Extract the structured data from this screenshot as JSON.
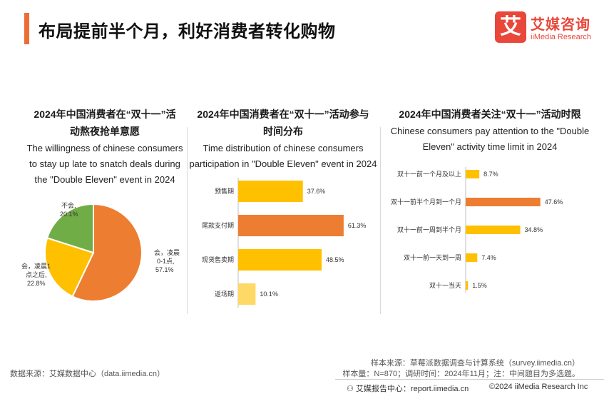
{
  "header": {
    "title": "布局提前半个月，利好消费者转化购物",
    "brand_mark": "艾",
    "brand_cn": "艾媒咨询",
    "brand_en": "iiMedia Research"
  },
  "colors": {
    "accent": "#ed6d35",
    "orange": "#ed7d31",
    "yellow": "#ffc000",
    "light_yellow": "#ffd966",
    "green": "#70ad47"
  },
  "chart_data": [
    {
      "type": "pie",
      "title_line1": "2024年中国消费者在“双十一”活",
      "title_line2": "动熬夜抢单意愿",
      "subtitle_line1": "The willingness of chinese consumers",
      "subtitle_line2": "to stay up late to snatch deals during",
      "subtitle_line3": "the \"Double Eleven\" event in 2024",
      "slices": [
        {
          "label_line1": "会，凌晨",
          "label_line2": "0-1点,",
          "value": 57.1,
          "value_label": "57.1%",
          "color": "#ed7d31"
        },
        {
          "label_line1": "会，凌晨1",
          "label_line2": "点之后,",
          "value": 22.8,
          "value_label": "22.8%",
          "color": "#ffc000"
        },
        {
          "label_line1": "不会,",
          "label_line2": "",
          "value": 20.1,
          "value_label": "20.1%",
          "color": "#70ad47"
        }
      ]
    },
    {
      "type": "bar",
      "orientation": "horizontal",
      "title_line1": "2024年中国消费者在“双十一”活动参与",
      "title_line2": "时间分布",
      "subtitle_line1": "Time distribution of chinese consumers",
      "subtitle_line2": "participation in \"Double Eleven\" event in 2024",
      "categories": [
        "预售期",
        "尾款支付期",
        "现货售卖期",
        "返场期"
      ],
      "values": [
        37.6,
        61.3,
        48.5,
        10.1
      ],
      "value_labels": [
        "37.6%",
        "61.3%",
        "48.5%",
        "10.1%"
      ],
      "colors": [
        "#ffc000",
        "#ed7d31",
        "#ffc000",
        "#ffd966"
      ],
      "xlim": [
        0,
        80
      ]
    },
    {
      "type": "bar",
      "orientation": "horizontal",
      "title_line1": "2024年中国消费者关注“双十一”活动时限",
      "subtitle_line1": "Chinese consumers pay attention to the \"Double",
      "subtitle_line2": "Eleven\" activity time limit in 2024",
      "categories": [
        "双十一前一个月及以上",
        "双十一前半个月到一个月",
        "双十一前一周到半个月",
        "双十一前一天到一周",
        "双十一当天"
      ],
      "values": [
        8.7,
        47.6,
        34.8,
        7.4,
        1.5
      ],
      "value_labels": [
        "8.7%",
        "47.6%",
        "34.8%",
        "7.4%",
        "1.5%"
      ],
      "colors": [
        "#ffc000",
        "#ed7d31",
        "#ffc000",
        "#ffc000",
        "#ffc000"
      ],
      "xlim": [
        0,
        60
      ]
    }
  ],
  "footer": {
    "data_source": "数据来源：艾媒数据中心（data.iimedia.cn）",
    "sample_source": "样本来源：草莓派数据调查与计算系统（survey.iimedia.cn）",
    "sample_size": "样本量：N=870；调研时间：2024年11月；注：中间题目为多选题。",
    "report_center": "艾媒报告中心：report.iimedia.cn",
    "copyright": "©2024  iiMedia Research  Inc"
  }
}
